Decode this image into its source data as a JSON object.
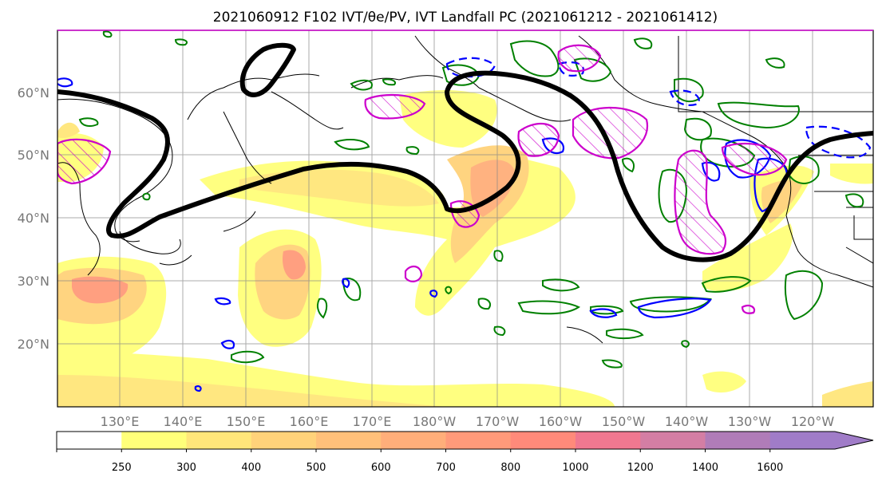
{
  "title": "2021060912 F102 IVT/θe/PV, IVT Landfall PC (2021061212 - 2021061412)",
  "lat_labels": [
    "60°N",
    "50°N",
    "40°N",
    "30°N",
    "20°N"
  ],
  "lon_labels": [
    "130°E",
    "140°E",
    "150°E",
    "160°E",
    "170°E",
    "180°W",
    "170°W",
    "160°W",
    "150°W",
    "140°W",
    "130°W",
    "120°W"
  ],
  "colorbar": {
    "ticks": [
      "250",
      "300",
      "400",
      "500",
      "600",
      "700",
      "800",
      "1000",
      "1200",
      "1400",
      "1600"
    ],
    "colors": [
      "#ffffff",
      "#ffff7a",
      "#ffe67a",
      "#ffd27a",
      "#ffc07a",
      "#ffae7a",
      "#ff9a7a",
      "#ff8a7a",
      "#f07890",
      "#d47ea4",
      "#b07cb8",
      "#a07cc8"
    ]
  },
  "colors": {
    "theta_e_contour": "#008000",
    "pv_contour": "#0000ff",
    "landfall_pc": "#cc00cc",
    "height_contour": "#000000",
    "coastline": "#000000",
    "gridline": "#888888",
    "label_gray": "#777777"
  }
}
